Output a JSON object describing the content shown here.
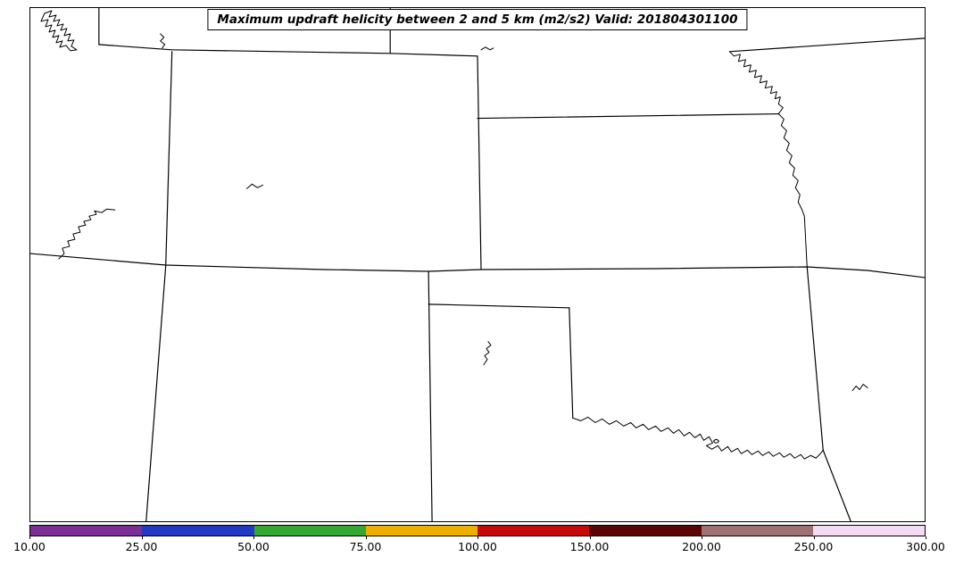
{
  "title": "Maximum updraft helicity between 2 and 5 km (m2/s2) Valid: 201804301100",
  "colorbar": {
    "levels": [
      10,
      25,
      50,
      75,
      100,
      150,
      200,
      250,
      300
    ],
    "tick_labels": [
      "10.00",
      "25.00",
      "50.00",
      "75.00",
      "100.00",
      "150.00",
      "200.00",
      "250.00",
      "300.00"
    ],
    "segment_colors": [
      "#7b2f94",
      "#2239c4",
      "#34a832",
      "#eeb000",
      "#c40a0a",
      "#5a0505",
      "#9e7272",
      "#f3dcf3"
    ],
    "line_color": "#000000",
    "background_color": "#ffffff"
  }
}
